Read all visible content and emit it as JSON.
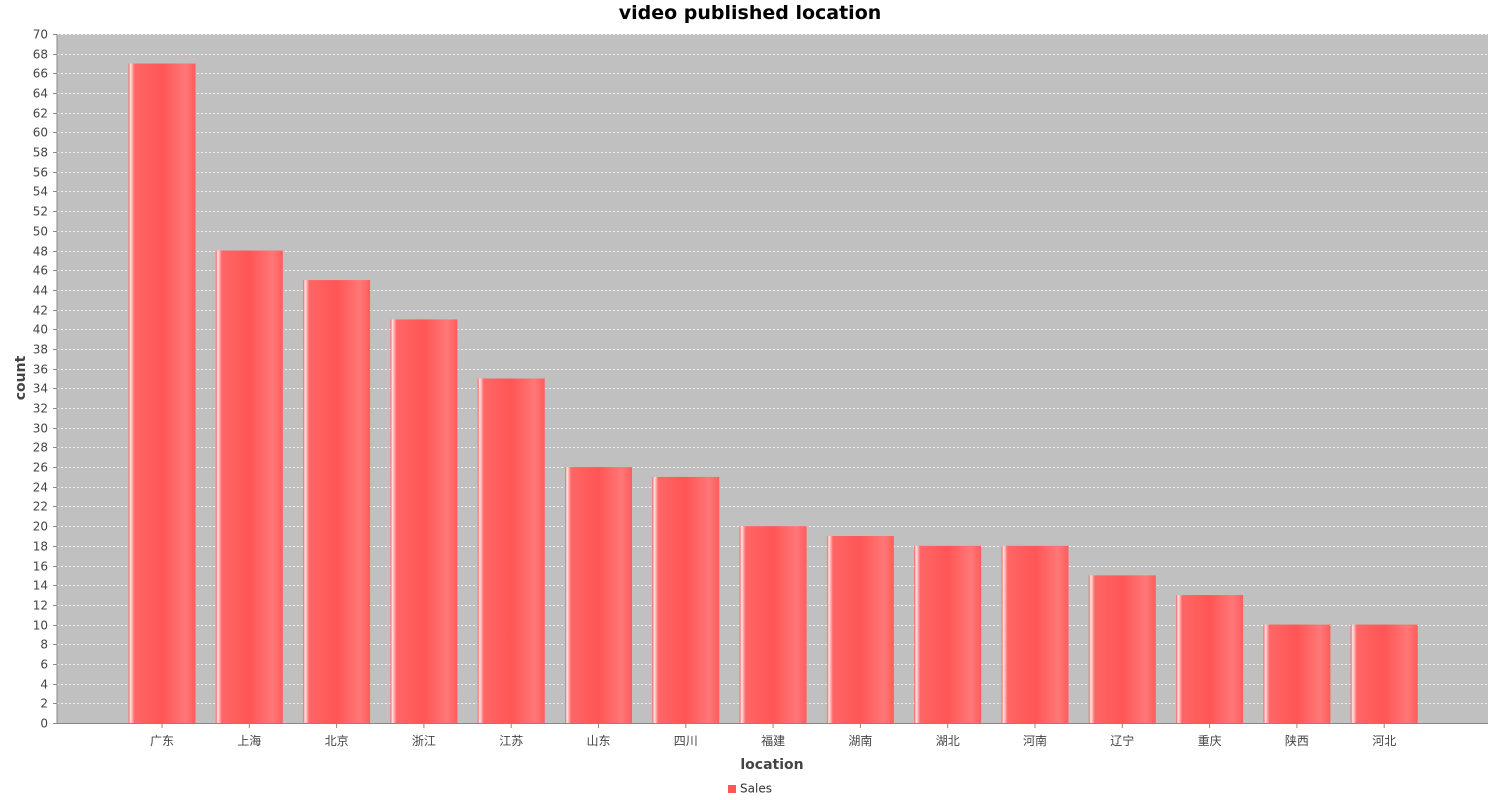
{
  "chart_data": {
    "type": "bar",
    "title": "video published location",
    "xlabel": "location",
    "ylabel": "count",
    "ylim": [
      0,
      70
    ],
    "ytick_step": 2,
    "grid": true,
    "legend_position": "bottom",
    "categories": [
      "广东",
      "上海",
      "北京",
      "浙江",
      "江苏",
      "山东",
      "四川",
      "福建",
      "湖南",
      "湖北",
      "河南",
      "辽宁",
      "重庆",
      "陕西",
      "河北"
    ],
    "series": [
      {
        "name": "Sales",
        "color": "#ff5555",
        "values": [
          67,
          48,
          45,
          41,
          35,
          26,
          25,
          20,
          19,
          18,
          18,
          15,
          13,
          10,
          10
        ]
      }
    ]
  },
  "colors": {
    "plot_background": "#c0c0c0",
    "grid": "#ffffff",
    "bar_base": "#ff5555",
    "bar_light": "#ff7777",
    "bar_highlight": "#ffe6e6"
  }
}
